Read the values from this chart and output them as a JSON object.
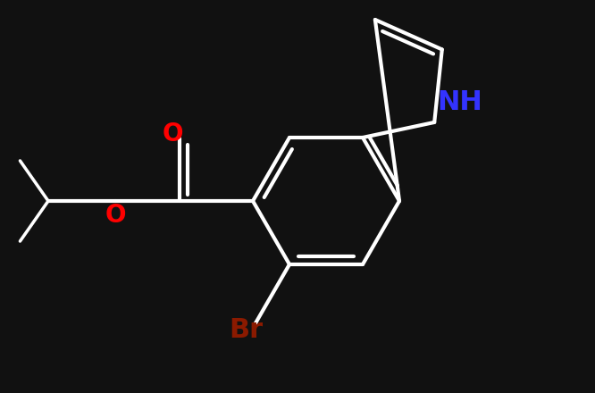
{
  "bg_color": "#111111",
  "bond_color": "#ffffff",
  "NH_color": "#3333ff",
  "O_color": "#ff0000",
  "Br_color": "#8b1a00",
  "bond_width": 3.0,
  "figsize": [
    6.66,
    4.4
  ],
  "dpi": 100,
  "font_size_NH": 22,
  "font_size_O": 20,
  "font_size_Br": 22,
  "NH_label": "NH",
  "O_label1": "O",
  "O_label2": "O",
  "Br_label": "Br"
}
